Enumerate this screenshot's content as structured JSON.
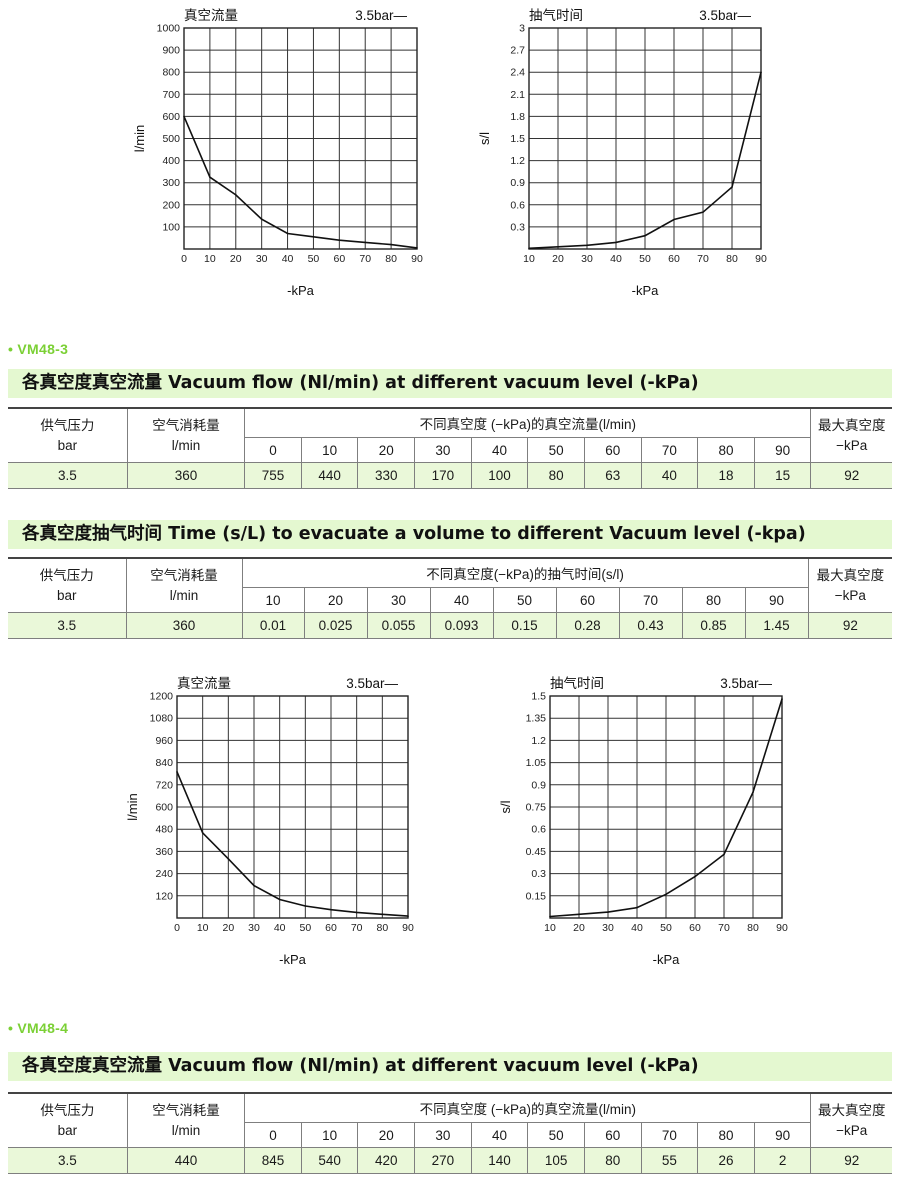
{
  "charts": {
    "c1": {
      "title": "真空流量",
      "legend": "3.5bar—",
      "xlabel": "-kPa",
      "ylabel": "l/min",
      "xticks": [
        "0",
        "10",
        "20",
        "30",
        "40",
        "50",
        "60",
        "70",
        "80",
        "90"
      ],
      "yticks": [
        "100",
        "200",
        "300",
        "400",
        "500",
        "600",
        "700",
        "800",
        "900",
        "1000"
      ]
    },
    "c2": {
      "title": "抽气时间",
      "legend": "3.5bar—",
      "xlabel": "-kPa",
      "ylabel": "s/l",
      "xticks": [
        "10",
        "20",
        "30",
        "40",
        "50",
        "60",
        "70",
        "80",
        "90"
      ],
      "yticks": [
        "0.3",
        "0.6",
        "0.9",
        "1.2",
        "1.5",
        "1.8",
        "2.1",
        "2.4",
        "2.7",
        "3"
      ]
    },
    "c3": {
      "title": "真空流量",
      "legend": "3.5bar—",
      "xlabel": "-kPa",
      "ylabel": "l/min",
      "xticks": [
        "0",
        "10",
        "20",
        "30",
        "40",
        "50",
        "60",
        "70",
        "80",
        "90"
      ],
      "yticks": [
        "120",
        "240",
        "360",
        "480",
        "600",
        "720",
        "840",
        "960",
        "1080",
        "1200"
      ]
    },
    "c4": {
      "title": "抽气时间",
      "legend": "3.5bar—",
      "xlabel": "-kPa",
      "ylabel": "s/l",
      "xticks": [
        "10",
        "20",
        "30",
        "40",
        "50",
        "60",
        "70",
        "80",
        "90"
      ],
      "yticks": [
        "0.15",
        "0.3",
        "0.45",
        "0.6",
        "0.75",
        "0.9",
        "1.05",
        "1.2",
        "1.35",
        "1.5"
      ]
    }
  },
  "chart_data": [
    {
      "type": "line",
      "title": "真空流量",
      "xlabel": "-kPa",
      "ylabel": "l/min",
      "x": [
        0,
        10,
        20,
        30,
        40,
        50,
        60,
        70,
        80,
        90
      ],
      "xlim": [
        0,
        90
      ],
      "ylim": [
        0,
        1000
      ],
      "grid": true,
      "series": [
        {
          "name": "3.5bar",
          "values": [
            600,
            325,
            245,
            135,
            70,
            55,
            40,
            30,
            20,
            5
          ]
        }
      ]
    },
    {
      "type": "line",
      "title": "抽气时间",
      "xlabel": "-kPa",
      "ylabel": "s/l",
      "x": [
        10,
        20,
        30,
        40,
        50,
        60,
        70,
        80,
        90
      ],
      "xlim": [
        10,
        90
      ],
      "ylim": [
        0,
        3
      ],
      "grid": true,
      "series": [
        {
          "name": "3.5bar",
          "values": [
            0.01,
            0.03,
            0.05,
            0.09,
            0.18,
            0.4,
            0.5,
            0.84,
            2.4
          ]
        }
      ]
    },
    {
      "type": "line",
      "title": "真空流量",
      "xlabel": "-kPa",
      "ylabel": "l/min",
      "x": [
        0,
        10,
        20,
        30,
        40,
        50,
        60,
        70,
        80,
        90
      ],
      "xlim": [
        0,
        90
      ],
      "ylim": [
        0,
        1200
      ],
      "grid": true,
      "series": [
        {
          "name": "3.5bar",
          "values": [
            790,
            460,
            320,
            175,
            100,
            65,
            45,
            30,
            20,
            10
          ]
        }
      ]
    },
    {
      "type": "line",
      "title": "抽气时间",
      "xlabel": "-kPa",
      "ylabel": "s/l",
      "x": [
        10,
        20,
        30,
        40,
        50,
        60,
        70,
        80,
        90
      ],
      "xlim": [
        10,
        90
      ],
      "ylim": [
        0,
        1.5
      ],
      "grid": true,
      "series": [
        {
          "name": "3.5bar",
          "values": [
            0.01,
            0.025,
            0.04,
            0.07,
            0.16,
            0.28,
            0.43,
            0.85,
            1.48
          ]
        }
      ]
    }
  ],
  "sections": {
    "vm483": {
      "model": "• VM48-3",
      "flow": {
        "banner": "各真空度真空流量 Vacuum flow (Nl/min) at different vacuum level (-kPa)",
        "pressure_h": "供气压力",
        "pressure_u": "bar",
        "consumption_h": "空气消耗量",
        "consumption_u": "l/min",
        "group": "不同真空度 (−kPa)的真空流量(l/min)",
        "max_h": "最大真空度",
        "max_u": "−kPa",
        "cols": [
          "0",
          "10",
          "20",
          "30",
          "40",
          "50",
          "60",
          "70",
          "80",
          "90"
        ],
        "row": {
          "pressure": "3.5",
          "consumption": "360",
          "values": [
            "755",
            "440",
            "330",
            "170",
            "100",
            "80",
            "63",
            "40",
            "18",
            "15"
          ],
          "max": "92"
        }
      },
      "time": {
        "banner": "各真空度抽气时间 Time (s/L) to evacuate a volume to different Vacuum level (-kpa)",
        "pressure_h": "供气压力",
        "pressure_u": "bar",
        "consumption_h": "空气消耗量",
        "consumption_u": "l/min",
        "group": "不同真空度(−kPa)的抽气时间(s/l)",
        "max_h": "最大真空度",
        "max_u": "−kPa",
        "cols": [
          "10",
          "20",
          "30",
          "40",
          "50",
          "60",
          "70",
          "80",
          "90"
        ],
        "row": {
          "pressure": "3.5",
          "consumption": "360",
          "values": [
            "0.01",
            "0.025",
            "0.055",
            "0.093",
            "0.15",
            "0.28",
            "0.43",
            "0.85",
            "1.45"
          ],
          "max": "92"
        }
      }
    },
    "vm484": {
      "model": "• VM48-4",
      "flow": {
        "banner": "各真空度真空流量 Vacuum flow (Nl/min) at different vacuum level (-kPa)",
        "pressure_h": "供气压力",
        "pressure_u": "bar",
        "consumption_h": "空气消耗量",
        "consumption_u": "l/min",
        "group": "不同真空度 (−kPa)的真空流量(l/min)",
        "max_h": "最大真空度",
        "max_u": "−kPa",
        "cols": [
          "0",
          "10",
          "20",
          "30",
          "40",
          "50",
          "60",
          "70",
          "80",
          "90"
        ],
        "row": {
          "pressure": "3.5",
          "consumption": "440",
          "values": [
            "845",
            "540",
            "420",
            "270",
            "140",
            "105",
            "80",
            "55",
            "26",
            "2"
          ],
          "max": "92"
        }
      }
    }
  }
}
